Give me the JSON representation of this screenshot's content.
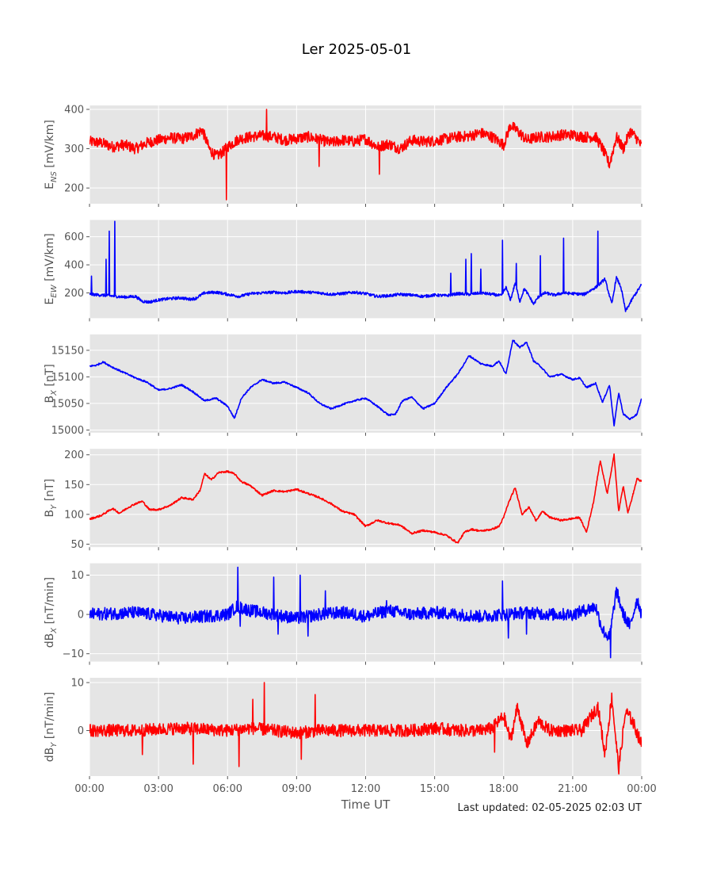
{
  "title": "Ler 2025-05-01",
  "footer": "Last updated: 02-05-2025 02:03 UT",
  "colors": {
    "red": "#ff0000",
    "blue": "#0000ff",
    "panel_bg": "#e5e5e5",
    "grid": "#ffffff",
    "text": "#555555"
  },
  "chart_data": [
    {
      "type": "line",
      "id": "ens",
      "color": "red",
      "noise": 14,
      "spikes": [
        [
          5.95,
          170
        ],
        [
          7.7,
          400
        ],
        [
          9.97,
          255
        ],
        [
          12.6,
          235
        ]
      ],
      "ylabel": "E",
      "ylabel_sub": "NS",
      "ylabel_unit": " [mV/km]",
      "ylim": [
        160,
        410
      ],
      "yticks": [
        200,
        300,
        400
      ],
      "ytick_labels": [
        "200",
        "300",
        "400"
      ],
      "x": [
        0,
        0.5,
        1,
        1.5,
        2,
        2.5,
        3,
        3.5,
        4,
        4.5,
        4.9,
        5.2,
        5.5,
        5.8,
        6,
        6.5,
        7,
        7.5,
        8,
        8.5,
        9,
        9.5,
        10,
        10.5,
        11,
        11.5,
        12,
        12.5,
        13,
        13.5,
        14,
        14.5,
        15,
        15.5,
        16,
        16.5,
        17,
        17.5,
        18,
        18.3,
        18.6,
        19,
        19.5,
        20,
        20.5,
        21,
        21.5,
        22,
        22.3,
        22.6,
        22.9,
        23.2,
        23.5,
        23.8,
        24
      ],
      "values": [
        318,
        315,
        305,
        310,
        300,
        315,
        322,
        328,
        325,
        333,
        348,
        300,
        280,
        292,
        305,
        325,
        330,
        333,
        330,
        322,
        326,
        330,
        323,
        315,
        322,
        318,
        325,
        305,
        312,
        300,
        322,
        318,
        320,
        325,
        330,
        332,
        340,
        330,
        310,
        360,
        345,
        322,
        330,
        330,
        335,
        335,
        330,
        330,
        300,
        260,
        330,
        300,
        345,
        325,
        305
      ]
    },
    {
      "type": "line",
      "id": "eew",
      "color": "blue",
      "noise": 10,
      "spikes": [
        [
          0.08,
          320
        ],
        [
          0.72,
          440
        ],
        [
          0.85,
          640
        ],
        [
          1.1,
          710
        ],
        [
          15.7,
          340
        ],
        [
          16.35,
          440
        ],
        [
          16.6,
          480
        ],
        [
          17.0,
          370
        ],
        [
          17.95,
          575
        ],
        [
          18.55,
          410
        ],
        [
          19.6,
          465
        ],
        [
          20.6,
          590
        ],
        [
          22.1,
          640
        ]
      ],
      "ylabel": "E",
      "ylabel_sub": "EW",
      "ylabel_unit": " [mV/km]",
      "ylim": [
        20,
        720
      ],
      "yticks": [
        200,
        400,
        600
      ],
      "ytick_labels": [
        "200",
        "400",
        "600"
      ],
      "x": [
        0,
        0.5,
        1,
        1.5,
        2,
        2.3,
        2.6,
        3,
        3.5,
        4,
        4.3,
        4.6,
        5,
        5.5,
        6,
        6.5,
        7,
        7.5,
        8,
        8.5,
        9,
        9.5,
        10,
        10.5,
        11,
        11.5,
        12,
        12.5,
        13,
        13.5,
        14,
        14.5,
        15,
        15.5,
        16,
        16.5,
        17,
        17.5,
        17.9,
        18.1,
        18.3,
        18.5,
        18.7,
        18.9,
        19.1,
        19.3,
        19.5,
        19.8,
        20.2,
        20.6,
        21,
        21.5,
        21.8,
        22.1,
        22.4,
        22.7,
        22.9,
        23.1,
        23.3,
        23.6,
        24
      ],
      "values": [
        190,
        185,
        178,
        170,
        175,
        140,
        135,
        150,
        160,
        165,
        155,
        160,
        200,
        205,
        190,
        175,
        195,
        200,
        205,
        200,
        210,
        205,
        200,
        190,
        195,
        205,
        195,
        175,
        180,
        190,
        185,
        175,
        185,
        180,
        195,
        190,
        200,
        190,
        180,
        240,
        150,
        270,
        140,
        230,
        180,
        120,
        170,
        200,
        185,
        200,
        195,
        190,
        220,
        250,
        300,
        120,
        310,
        240,
        70,
        160,
        260
      ]
    },
    {
      "type": "line",
      "id": "bx",
      "color": "blue",
      "noise": 1.5,
      "spikes": [],
      "ylabel": "B",
      "ylabel_sub": "X",
      "ylabel_unit": " [nT]",
      "ylim": [
        14995,
        15180
      ],
      "yticks": [
        15000,
        15050,
        15100,
        15150
      ],
      "ytick_labels": [
        "15000",
        "15050",
        "15100",
        "15150"
      ],
      "x": [
        0,
        0.3,
        0.6,
        1,
        1.5,
        2,
        2.5,
        3,
        3.5,
        4,
        4.5,
        5,
        5.5,
        6,
        6.3,
        6.6,
        7,
        7.5,
        8,
        8.5,
        9,
        9.5,
        10,
        10.5,
        11,
        11.5,
        12,
        12.5,
        13,
        13.3,
        13.6,
        14,
        14.5,
        15,
        15.5,
        16,
        16.5,
        17,
        17.5,
        17.8,
        18.1,
        18.4,
        18.7,
        19,
        19.3,
        19.6,
        20,
        20.5,
        21,
        21.3,
        21.6,
        22,
        22.3,
        22.6,
        22.8,
        23,
        23.2,
        23.5,
        23.8,
        24
      ],
      "values": [
        15120,
        15122,
        15128,
        15118,
        15108,
        15098,
        15090,
        15075,
        15078,
        15085,
        15072,
        15055,
        15060,
        15045,
        15022,
        15060,
        15080,
        15095,
        15088,
        15090,
        15080,
        15070,
        15050,
        15040,
        15048,
        15055,
        15060,
        15045,
        15028,
        15030,
        15055,
        15062,
        15040,
        15050,
        15080,
        15105,
        15140,
        15125,
        15120,
        15130,
        15105,
        15170,
        15155,
        15165,
        15130,
        15120,
        15100,
        15105,
        15095,
        15098,
        15080,
        15088,
        15052,
        15085,
        15008,
        15070,
        15030,
        15020,
        15030,
        15060
      ]
    },
    {
      "type": "line",
      "id": "by",
      "color": "red",
      "noise": 1.5,
      "spikes": [],
      "ylabel": "B",
      "ylabel_sub": "Y",
      "ylabel_unit": " [nT]",
      "ylim": [
        45,
        210
      ],
      "yticks": [
        50,
        100,
        150,
        200
      ],
      "ytick_labels": [
        "50",
        "100",
        "150",
        "200"
      ],
      "x": [
        0,
        0.5,
        1,
        1.3,
        1.7,
        2,
        2.3,
        2.6,
        3,
        3.5,
        4,
        4.5,
        4.8,
        5,
        5.3,
        5.6,
        6,
        6.3,
        6.6,
        7,
        7.5,
        8,
        8.5,
        9,
        9.5,
        10,
        10.5,
        11,
        11.5,
        12,
        12.5,
        13,
        13.5,
        14,
        14.5,
        15,
        15.5,
        16,
        16.3,
        16.6,
        17,
        17.5,
        17.8,
        18,
        18.2,
        18.5,
        18.8,
        19.1,
        19.4,
        19.7,
        20,
        20.5,
        21,
        21.3,
        21.6,
        21.9,
        22.2,
        22.5,
        22.8,
        23,
        23.2,
        23.4,
        23.6,
        23.8,
        24
      ],
      "values": [
        92,
        98,
        110,
        102,
        112,
        118,
        122,
        108,
        108,
        115,
        128,
        125,
        140,
        168,
        158,
        170,
        172,
        168,
        155,
        148,
        132,
        140,
        138,
        142,
        135,
        128,
        118,
        105,
        100,
        80,
        90,
        85,
        82,
        68,
        73,
        70,
        65,
        52,
        70,
        75,
        72,
        75,
        80,
        95,
        118,
        145,
        100,
        112,
        90,
        105,
        95,
        90,
        93,
        95,
        70,
        120,
        190,
        135,
        200,
        105,
        148,
        103,
        130,
        160,
        155
      ]
    },
    {
      "type": "line",
      "id": "dbx",
      "color": "blue",
      "noise": 1.6,
      "spikes": [
        [
          6.45,
          12
        ],
        [
          6.55,
          -3
        ],
        [
          8.0,
          9.5
        ],
        [
          8.2,
          -5
        ],
        [
          9.15,
          10
        ],
        [
          9.5,
          -5.5
        ],
        [
          10.25,
          6
        ],
        [
          12.9,
          3.5
        ],
        [
          17.95,
          8.5
        ],
        [
          18.2,
          -6
        ],
        [
          19.0,
          -5
        ],
        [
          22.65,
          -11
        ]
      ],
      "ylabel": "dB",
      "ylabel_sub": "X",
      "ylabel_unit": " [nT/min]",
      "ylim": [
        -12,
        13
      ],
      "yticks": [
        -10,
        0,
        10
      ],
      "ytick_labels": [
        "−10",
        "0",
        "10"
      ],
      "x": [
        0,
        2,
        4,
        6,
        6.4,
        7,
        8,
        9,
        10,
        11,
        12,
        13,
        14,
        15,
        16,
        17,
        18,
        19,
        20,
        21,
        21.5,
        22,
        22.3,
        22.6,
        22.9,
        23.2,
        23.5,
        23.8,
        24
      ],
      "values": [
        0,
        0.5,
        -1,
        0,
        2,
        1,
        0,
        -1,
        0,
        0.5,
        -0.5,
        1,
        0,
        0.5,
        0,
        -0.5,
        0,
        0.5,
        0,
        0,
        1,
        2,
        -4,
        -6,
        6,
        0,
        -3,
        4,
        0
      ]
    },
    {
      "type": "line",
      "id": "dby",
      "color": "red",
      "noise": 1.3,
      "spikes": [
        [
          4.5,
          -7
        ],
        [
          6.5,
          -7.5
        ],
        [
          7.6,
          10
        ],
        [
          7.1,
          6.5
        ],
        [
          9.8,
          7.5
        ],
        [
          9.2,
          -6
        ],
        [
          2.3,
          -5
        ],
        [
          17.6,
          -4.5
        ]
      ],
      "ylabel": "dB",
      "ylabel_sub": "Y",
      "ylabel_unit": " [nT/min]",
      "ylim": [
        -9.5,
        11
      ],
      "yticks": [
        0,
        10
      ],
      "ytick_labels": [
        "0",
        "10"
      ],
      "x": [
        0,
        2,
        4,
        6,
        7,
        8,
        9,
        10,
        11,
        12,
        13,
        14,
        15,
        16,
        17,
        17.5,
        18,
        18.3,
        18.6,
        19,
        19.5,
        20,
        20.5,
        21,
        21.4,
        21.8,
        22.1,
        22.4,
        22.7,
        23,
        23.3,
        23.6,
        24
      ],
      "values": [
        0,
        0,
        0.5,
        0,
        0.5,
        0,
        -0.5,
        0,
        0,
        0,
        0,
        0,
        0.5,
        0,
        0,
        0.5,
        3,
        -2,
        5,
        -3,
        2,
        0,
        0,
        0,
        0,
        3,
        5,
        -5,
        7,
        -8,
        4,
        2,
        -3
      ]
    }
  ],
  "x_axis": {
    "label": "Time UT",
    "xlim": [
      0,
      24
    ],
    "ticks": [
      0,
      3,
      6,
      9,
      12,
      15,
      18,
      21,
      24
    ],
    "tick_labels": [
      "00:00",
      "03:00",
      "06:00",
      "09:00",
      "12:00",
      "15:00",
      "18:00",
      "21:00",
      "00:00"
    ]
  }
}
